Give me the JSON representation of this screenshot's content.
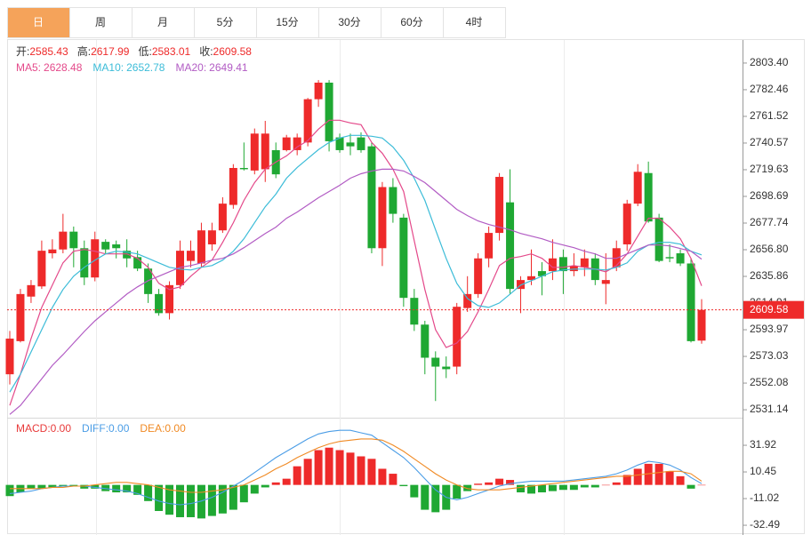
{
  "tabs": [
    "日",
    "周",
    "月",
    "5分",
    "15分",
    "30分",
    "60分",
    "4时"
  ],
  "active_tab": 0,
  "chart_data": [
    {
      "type": "candlestick",
      "ohlc_labels": [
        "开:",
        "高:",
        "低:",
        "收:"
      ],
      "up_color": "#ee2a2a",
      "down_color": "#1fa833",
      "open": [
        2559,
        2585,
        2620,
        2628,
        2654,
        2657,
        2671,
        2658,
        2635,
        2663,
        2661,
        2656,
        2651,
        2642,
        2622,
        2607,
        2629,
        2648,
        2646,
        2661,
        2672,
        2692,
        2721,
        2719,
        2720,
        2735,
        2735,
        2735,
        2741,
        2775,
        2788,
        2745,
        2741,
        2745,
        2738,
        2658,
        2706,
        2682,
        2619,
        2598,
        2572,
        2565,
        2565,
        2611,
        2622,
        2650,
        2670,
        2694,
        2626,
        2633,
        2640,
        2640,
        2651,
        2640,
        2643,
        2650,
        2630,
        2643,
        2661,
        2693,
        2717,
        2682,
        2651,
        2654,
        2646,
        2585.43
      ],
      "high": [
        2593,
        2626,
        2633,
        2664,
        2665,
        2685,
        2675,
        2664,
        2671,
        2665,
        2664,
        2665,
        2656,
        2646,
        2626,
        2632,
        2664,
        2664,
        2678,
        2678,
        2698,
        2724,
        2741,
        2752,
        2758,
        2741,
        2747,
        2748,
        2776,
        2790,
        2790,
        2748,
        2748,
        2749,
        2741,
        2710,
        2713,
        2685,
        2626,
        2601,
        2577,
        2573,
        2615,
        2636,
        2654,
        2675,
        2717,
        2720,
        2636,
        2657,
        2647,
        2665,
        2657,
        2654,
        2657,
        2654,
        2654,
        2664,
        2696,
        2724,
        2726,
        2685,
        2661,
        2657,
        2650,
        2617.99
      ],
      "low": [
        2551,
        2584,
        2615,
        2626,
        2650,
        2654,
        2643,
        2629,
        2632,
        2654,
        2650,
        2643,
        2640,
        2615,
        2605,
        2602,
        2626,
        2643,
        2643,
        2656,
        2670,
        2689,
        2719,
        2716,
        2710,
        2713,
        2734,
        2731,
        2738,
        2769,
        2734,
        2733,
        2731,
        2733,
        2654,
        2644,
        2678,
        2612,
        2593,
        2559,
        2538,
        2556,
        2559,
        2608,
        2619,
        2643,
        2664,
        2622,
        2607,
        2629,
        2621,
        2633,
        2622,
        2636,
        2636,
        2629,
        2614,
        2640,
        2656,
        2691,
        2678,
        2647,
        2647,
        2644,
        2584,
        2583.01
      ],
      "close": [
        2587,
        2622,
        2629,
        2656,
        2657,
        2671,
        2658,
        2635,
        2665,
        2657,
        2658,
        2650,
        2642,
        2622,
        2607,
        2629,
        2656,
        2656,
        2672,
        2672,
        2693,
        2721,
        2720,
        2748,
        2748,
        2716,
        2745,
        2745,
        2775,
        2788,
        2742,
        2735,
        2738,
        2735,
        2658,
        2706,
        2685,
        2619,
        2598,
        2572,
        2565,
        2563,
        2612,
        2622,
        2650,
        2670,
        2714,
        2626,
        2633,
        2636,
        2636,
        2650,
        2640,
        2644,
        2650,
        2633,
        2633,
        2658,
        2693,
        2718,
        2679,
        2648,
        2650,
        2646,
        2585,
        2609.58
      ],
      "series": [
        {
          "name": "MA5:",
          "color": "#e4498a",
          "values": [
            2534.5,
            2559,
            2587,
            2611.5,
            2629,
            2646.5,
            2655.6,
            2657,
            2655.6,
            2653.5,
            2653.5,
            2653.5,
            2650,
            2643,
            2630.4,
            2625.5,
            2627.6,
            2636,
            2643,
            2648.6,
            2662.6,
            2678,
            2695.5,
            2709.5,
            2720,
            2725.6,
            2730.5,
            2737.5,
            2742.4,
            2751.5,
            2758.5,
            2758.5,
            2756.4,
            2755,
            2741,
            2732.6,
            2720,
            2702.5,
            2664,
            2625.5,
            2594,
            2580,
            2583.5,
            2592.6,
            2608,
            2625.5,
            2644.4,
            2650,
            2651.4,
            2653.5,
            2650,
            2643,
            2643,
            2644.4,
            2643,
            2641.6,
            2639.5,
            2644.4,
            2653.5,
            2667.5,
            2681.5,
            2681.5,
            2674.5,
            2665.4,
            2650,
            2628.48
          ]
        },
        {
          "name": "MA10:",
          "color": "#3cbcd8",
          "values": [
            2545,
            2559,
            2576.5,
            2594,
            2611.5,
            2625.5,
            2636,
            2643,
            2648.6,
            2653.5,
            2655.6,
            2654.9,
            2653.5,
            2650,
            2646.5,
            2643,
            2641.6,
            2640.9,
            2643,
            2644.4,
            2648.6,
            2655.6,
            2665.4,
            2678,
            2690.6,
            2700.4,
            2713,
            2721.4,
            2728.4,
            2735.4,
            2741,
            2744.5,
            2746.6,
            2746.6,
            2745.9,
            2744.5,
            2737.5,
            2727,
            2713,
            2695.5,
            2672.4,
            2650,
            2630.4,
            2618.5,
            2612.9,
            2611.5,
            2615,
            2622,
            2629,
            2632.5,
            2636,
            2639.5,
            2640.9,
            2641.6,
            2641.6,
            2641.6,
            2640.9,
            2643,
            2646.5,
            2655.6,
            2660.5,
            2662.6,
            2662.6,
            2661.2,
            2655.6,
            2652.78
          ]
        },
        {
          "name": "MA20:",
          "color": "#b25cc4",
          "values": [
            2527.5,
            2534.5,
            2545,
            2555.5,
            2566,
            2574.4,
            2583.5,
            2592.6,
            2601,
            2608,
            2615,
            2622,
            2627.6,
            2632.5,
            2636,
            2639.5,
            2643,
            2644.4,
            2646.5,
            2648.6,
            2650,
            2653.5,
            2658.4,
            2664,
            2669.6,
            2674.5,
            2681.5,
            2686.4,
            2692,
            2697.6,
            2702.5,
            2707.4,
            2713,
            2716.5,
            2718.6,
            2720,
            2720,
            2718.6,
            2714.4,
            2709.5,
            2702.5,
            2695.5,
            2688.5,
            2683.6,
            2679.4,
            2676.6,
            2674.5,
            2672.4,
            2669.6,
            2667.5,
            2665.4,
            2662.6,
            2660.5,
            2658.4,
            2655.6,
            2653.5,
            2650,
            2650,
            2653.5,
            2657,
            2660.5,
            2660.5,
            2659.8,
            2657.7,
            2655.6,
            2649.41
          ]
        }
      ],
      "ylim": [
        2524.9,
        2821.5
      ],
      "yticks": [
        {
          "value": 2803.4,
          "label": "2803.40"
        },
        {
          "value": 2782.46,
          "label": "2782.46"
        },
        {
          "value": 2761.52,
          "label": "2761.52"
        },
        {
          "value": 2740.57,
          "label": "2740.57"
        },
        {
          "value": 2719.63,
          "label": "2719.63"
        },
        {
          "value": 2698.69,
          "label": "2698.69"
        },
        {
          "value": 2677.74,
          "label": "2677.74"
        },
        {
          "value": 2656.8,
          "label": "2656.80"
        },
        {
          "value": 2635.86,
          "label": "2635.86"
        },
        {
          "value": 2614.91,
          "label": "2614.91"
        },
        {
          "value": 2593.97,
          "label": "2593.97"
        },
        {
          "value": 2573.03,
          "label": "2573.03"
        },
        {
          "value": 2552.08,
          "label": "2552.08"
        },
        {
          "value": 2531.14,
          "label": "2531.14"
        }
      ],
      "price_line": true,
      "price_line_color": "#ee2a2a"
    },
    {
      "type": "macd",
      "bars": {
        "name": "MACD:",
        "color": "#e83a3a",
        "up_color": "#ee2a2a",
        "down_color": "#1fa833",
        "legend_value": {
          "value": 0,
          "label": "0.00"
        },
        "values": [
          -9,
          -6,
          -3,
          -3,
          -2,
          -1,
          -1,
          -3,
          -3,
          -5,
          -6,
          -6,
          -8,
          -13,
          -21,
          -24,
          -26,
          -26,
          -27,
          -25,
          -23,
          -20,
          -14,
          -7,
          -2,
          2,
          5,
          15,
          21,
          28,
          30,
          28,
          26,
          23,
          21,
          13,
          9,
          -1,
          -10,
          -20,
          -22,
          -20,
          -11,
          -5,
          1,
          2,
          5,
          4,
          -6,
          -7,
          -6,
          -5,
          -4,
          -4,
          -2,
          -2,
          0,
          2,
          8,
          13,
          17,
          17,
          11,
          7,
          -3,
          0
        ]
      },
      "series": [
        {
          "name": "DIFF:",
          "color": "#4b9de6",
          "legend_value": {
            "value": 0,
            "label": "0.00"
          },
          "values": [
            -7,
            -6,
            -5,
            -3,
            -2,
            -1,
            -1,
            -1,
            -2,
            -3,
            -4,
            -5,
            -7,
            -10,
            -13,
            -15,
            -16,
            -15,
            -13,
            -10,
            -6,
            -1,
            4,
            10,
            16,
            22,
            27,
            32,
            37,
            41,
            43,
            44,
            44,
            42,
            40,
            34,
            28,
            22,
            14,
            5,
            -4,
            -10,
            -12,
            -10,
            -7,
            -4,
            -1,
            1,
            2,
            3,
            3,
            3,
            3,
            4,
            5,
            6,
            7,
            9,
            12,
            16,
            19,
            18,
            16,
            12,
            6,
            1
          ]
        },
        {
          "name": "DEA:",
          "color": "#f08a24",
          "legend_value": {
            "value": 0,
            "label": "0.00"
          },
          "values": [
            -3,
            -3,
            -3,
            -3,
            -2,
            -2,
            -1,
            -1,
            0,
            1,
            2,
            2,
            1,
            0,
            -2,
            -4,
            -5,
            -6,
            -6,
            -5,
            -4,
            -2,
            0,
            4,
            8,
            13,
            17,
            22,
            26,
            30,
            33,
            35,
            36,
            37,
            37,
            36,
            32,
            27,
            21,
            15,
            9,
            4,
            0,
            -3,
            -4,
            -4,
            -4,
            -3,
            -2,
            -1,
            0,
            1,
            2,
            3,
            4,
            5,
            6,
            7,
            7,
            8,
            9,
            10,
            11,
            11,
            9,
            3
          ]
        }
      ],
      "ylim": [
        -38.9,
        52.7
      ],
      "yticks": [
        {
          "value": 31.92,
          "label": "31.92"
        },
        {
          "value": 10.45,
          "label": "10.45"
        },
        {
          "value": -11.02,
          "label": "-11.02"
        },
        {
          "value": -32.49,
          "label": "-32.49"
        }
      ]
    }
  ]
}
